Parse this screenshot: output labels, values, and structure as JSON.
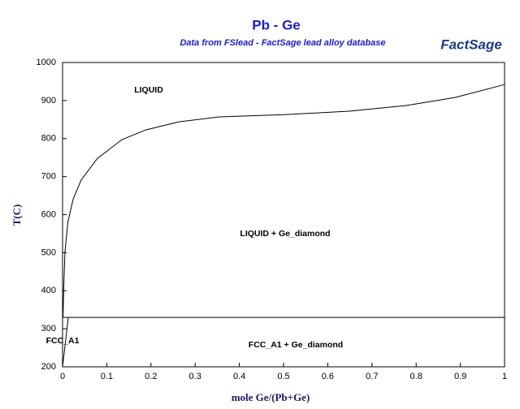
{
  "chart_data": {
    "type": "line",
    "title": "Pb - Ge",
    "subtitle": "Data from FSlead - FactSage lead alloy database",
    "logo": "FactSage",
    "x_label": "mole Ge/(Pb+Ge)",
    "y_label": "T(C)",
    "xlim": [
      0,
      1
    ],
    "ylim": [
      200,
      1000
    ],
    "xticks": [
      0,
      0.1,
      0.2,
      0.3,
      0.4,
      0.5,
      0.6,
      0.7,
      0.8,
      0.9,
      1
    ],
    "yticks": [
      200,
      300,
      400,
      500,
      600,
      700,
      800,
      900,
      1000
    ],
    "series": [
      {
        "name": "liquidus",
        "color": "#000000",
        "x": [
          0.001,
          0.003,
          0.0055,
          0.012,
          0.024,
          0.042,
          0.079,
          0.134,
          0.189,
          0.263,
          0.355,
          0.502,
          0.649,
          0.778,
          0.888,
          1
        ],
        "values": [
          330,
          420,
          503,
          580,
          641,
          691,
          748,
          797,
          823,
          844,
          857,
          863,
          872,
          887,
          908,
          942
        ]
      },
      {
        "name": "eutectic",
        "color": "#000000",
        "x": [
          0,
          1
        ],
        "values": [
          330,
          330
        ]
      },
      {
        "name": "solvus",
        "color": "#000000",
        "x": [
          0,
          0.013
        ],
        "values": [
          200,
          330
        ]
      },
      {
        "name": "pb-edge",
        "color": "#000000",
        "x": [
          0,
          0
        ],
        "values": [
          320,
          410
        ]
      }
    ],
    "annotations": [
      "LIQUID",
      "LIQUID + Ge_diamond",
      "FCC_A1",
      "FCC_A1 + Ge_diamond"
    ]
  }
}
